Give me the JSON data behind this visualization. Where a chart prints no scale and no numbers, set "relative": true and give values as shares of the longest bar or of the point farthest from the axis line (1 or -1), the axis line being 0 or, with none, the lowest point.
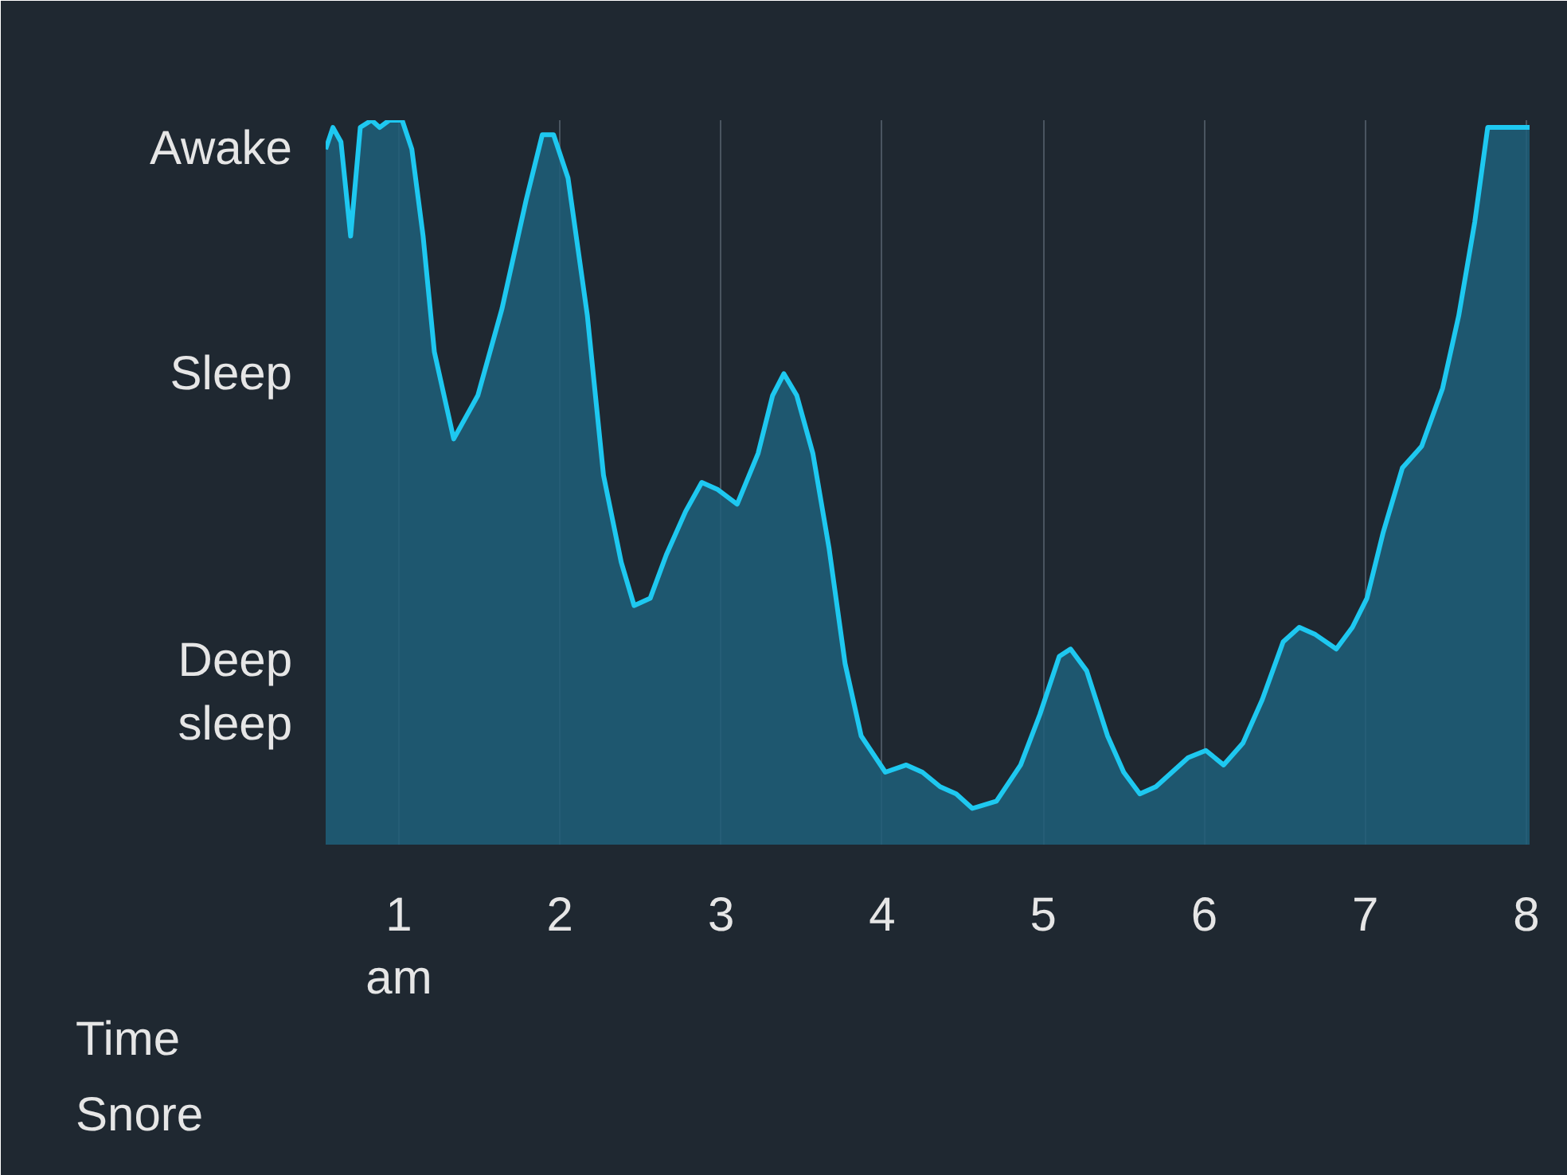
{
  "chart_data": {
    "type": "area",
    "xlabel": "Time",
    "color": "#1ec8f0",
    "relative": true,
    "x": [
      0.545,
      0.59,
      0.64,
      0.7,
      0.76,
      0.83,
      0.88,
      0.94,
      1.02,
      1.08,
      1.15,
      1.22,
      1.34,
      1.49,
      1.64,
      1.79,
      1.89,
      1.96,
      2.05,
      2.17,
      2.27,
      2.38,
      2.46,
      2.56,
      2.66,
      2.78,
      2.88,
      2.98,
      3.1,
      3.23,
      3.32,
      3.39,
      3.47,
      3.57,
      3.67,
      3.77,
      3.87,
      4.02,
      4.15,
      4.25,
      4.36,
      4.46,
      4.56,
      4.71,
      4.86,
      4.98,
      5.1,
      5.17,
      5.27,
      5.4,
      5.5,
      5.6,
      5.7,
      5.8,
      5.9,
      6.01,
      6.12,
      6.24,
      6.36,
      6.49,
      6.59,
      6.69,
      6.82,
      6.92,
      7.01,
      7.11,
      7.23,
      7.35,
      7.48,
      7.58,
      7.68,
      7.76,
      7.87,
      7.92,
      8.02
    ],
    "values": [
      0.96,
      0.99,
      0.97,
      0.84,
      0.99,
      1,
      0.99,
      1,
      1,
      0.96,
      0.84,
      0.68,
      0.56,
      0.62,
      0.74,
      0.89,
      0.98,
      0.98,
      0.92,
      0.73,
      0.51,
      0.39,
      0.33,
      0.34,
      0.4,
      0.46,
      0.5,
      0.49,
      0.47,
      0.54,
      0.62,
      0.65,
      0.62,
      0.54,
      0.41,
      0.25,
      0.15,
      0.1,
      0.11,
      0.1,
      0.08,
      0.07,
      0.05,
      0.06,
      0.11,
      0.18,
      0.26,
      0.27,
      0.24,
      0.15,
      0.1,
      0.07,
      0.08,
      0.1,
      0.12,
      0.13,
      0.11,
      0.14,
      0.2,
      0.28,
      0.3,
      0.29,
      0.27,
      0.3,
      0.34,
      0.43,
      0.52,
      0.55,
      0.63,
      0.73,
      0.86,
      0.99,
      0.99,
      0.99,
      0.99
    ],
    "xlim": [
      0.545,
      8.02
    ],
    "xticks": [
      {
        "value": 1,
        "label": "1\nam"
      },
      2,
      3,
      4,
      5,
      6,
      7,
      8
    ],
    "grid": "x",
    "annotations": [
      "Awake",
      "Sleep",
      "Deep\nsleep",
      "Snore"
    ]
  }
}
